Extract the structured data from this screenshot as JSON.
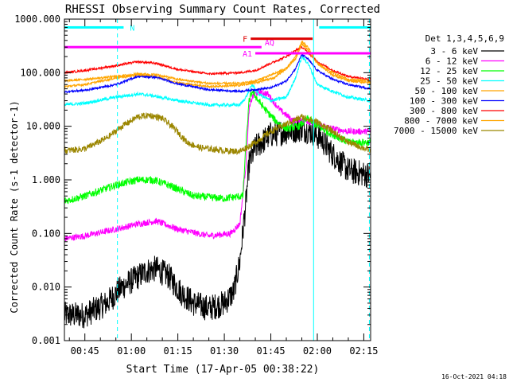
{
  "chart_data": {
    "type": "line",
    "title": "RHESSI Observing Summary Count Rates, Corrected",
    "xlabel": "Start Time (17-Apr-05 00:38:22)",
    "ylabel": "Corrected Count Rate (s-1 detector-1)",
    "ylog": true,
    "ylim": [
      0.001,
      1000
    ],
    "xlim_minutes": [
      38.4,
      137.2
    ],
    "y_ticks": [
      "1000.000",
      "100.000",
      "10.000",
      "1.000",
      "0.100",
      "0.010",
      "0.001"
    ],
    "x_ticks": [
      "00:45",
      "01:00",
      "01:15",
      "01:30",
      "01:45",
      "02:00",
      "02:15"
    ],
    "x_tick_minutes": [
      45,
      60,
      75,
      90,
      105,
      120,
      135
    ],
    "legend_title": "Det 1,3,4,5,6,9",
    "legend_position": "right",
    "footer": "16-Oct-2021 04:18",
    "series": [
      {
        "name": "3 - 6 keV",
        "color": "#000000",
        "noise": 0.25,
        "points": [
          [
            38.4,
            0.003
          ],
          [
            45,
            0.003
          ],
          [
            52,
            0.005
          ],
          [
            57,
            0.01
          ],
          [
            60,
            0.013
          ],
          [
            65,
            0.02
          ],
          [
            68,
            0.022
          ],
          [
            72,
            0.016
          ],
          [
            76,
            0.008
          ],
          [
            80,
            0.005
          ],
          [
            85,
            0.004
          ],
          [
            90,
            0.005
          ],
          [
            93,
            0.008
          ],
          [
            95,
            0.03
          ],
          [
            97,
            0.4
          ],
          [
            98,
            2
          ],
          [
            100,
            4
          ],
          [
            105,
            7
          ],
          [
            110,
            8
          ],
          [
            115,
            9
          ],
          [
            118,
            8
          ],
          [
            121,
            6
          ],
          [
            125,
            3
          ],
          [
            130,
            1.5
          ],
          [
            137.2,
            1.2
          ]
        ]
      },
      {
        "name": "6 - 12 keV",
        "color": "#ff00ff",
        "noise": 0.06,
        "points": [
          [
            38.4,
            0.08
          ],
          [
            45,
            0.09
          ],
          [
            55,
            0.12
          ],
          [
            62,
            0.15
          ],
          [
            68,
            0.17
          ],
          [
            75,
            0.12
          ],
          [
            85,
            0.09
          ],
          [
            92,
            0.1
          ],
          [
            95,
            0.15
          ],
          [
            97,
            2
          ],
          [
            98,
            20
          ],
          [
            99,
            35
          ],
          [
            101,
            45
          ],
          [
            104,
            40
          ],
          [
            108,
            20
          ],
          [
            112,
            13
          ],
          [
            116,
            13
          ],
          [
            120,
            11
          ],
          [
            125,
            9
          ],
          [
            130,
            8
          ],
          [
            137.2,
            8
          ]
        ]
      },
      {
        "name": "12 - 25 keV",
        "color": "#00ff00",
        "noise": 0.07,
        "points": [
          [
            38.4,
            0.4
          ],
          [
            45,
            0.5
          ],
          [
            55,
            0.8
          ],
          [
            62,
            1.0
          ],
          [
            67,
            1.0
          ],
          [
            72,
            0.8
          ],
          [
            80,
            0.5
          ],
          [
            90,
            0.45
          ],
          [
            96,
            0.5
          ],
          [
            97,
            5
          ],
          [
            98,
            30
          ],
          [
            99,
            45
          ],
          [
            101,
            30
          ],
          [
            104,
            18
          ],
          [
            107,
            12
          ],
          [
            110,
            9
          ],
          [
            114,
            10
          ],
          [
            117,
            14
          ],
          [
            120,
            10
          ],
          [
            125,
            7
          ],
          [
            130,
            5
          ],
          [
            137.2,
            5
          ]
        ]
      },
      {
        "name": "25 - 50 keV",
        "color": "#00ffff",
        "noise": 0.03,
        "points": [
          [
            38.4,
            25
          ],
          [
            45,
            27
          ],
          [
            55,
            35
          ],
          [
            62,
            40
          ],
          [
            66,
            38
          ],
          [
            75,
            30
          ],
          [
            85,
            25
          ],
          [
            95,
            25
          ],
          [
            97,
            35
          ],
          [
            99,
            60
          ],
          [
            101,
            40
          ],
          [
            105,
            30
          ],
          [
            110,
            35
          ],
          [
            113,
            80
          ],
          [
            115,
            200
          ],
          [
            117,
            150
          ],
          [
            120,
            60
          ],
          [
            125,
            45
          ],
          [
            130,
            35
          ],
          [
            137.2,
            30
          ]
        ]
      },
      {
        "name": "50 - 100 keV",
        "color": "#ffa500",
        "noise": 0.02,
        "points": [
          [
            38.4,
            55
          ],
          [
            45,
            60
          ],
          [
            55,
            80
          ],
          [
            62,
            90
          ],
          [
            68,
            85
          ],
          [
            75,
            65
          ],
          [
            85,
            55
          ],
          [
            95,
            58
          ],
          [
            100,
            65
          ],
          [
            106,
            80
          ],
          [
            110,
            120
          ],
          [
            113,
            200
          ],
          [
            115,
            380
          ],
          [
            117,
            300
          ],
          [
            120,
            150
          ],
          [
            125,
            90
          ],
          [
            130,
            70
          ],
          [
            137.2,
            65
          ]
        ]
      },
      {
        "name": "100 - 300 keV",
        "color": "#0000ff",
        "noise": 0.02,
        "points": [
          [
            38.4,
            44
          ],
          [
            45,
            47
          ],
          [
            55,
            60
          ],
          [
            62,
            85
          ],
          [
            68,
            82
          ],
          [
            75,
            62
          ],
          [
            85,
            48
          ],
          [
            95,
            45
          ],
          [
            105,
            52
          ],
          [
            110,
            70
          ],
          [
            113,
            120
          ],
          [
            115,
            220
          ],
          [
            117,
            180
          ],
          [
            120,
            110
          ],
          [
            125,
            75
          ],
          [
            130,
            60
          ],
          [
            137.2,
            50
          ]
        ]
      },
      {
        "name": "300 - 800 keV",
        "color": "#ff0000",
        "noise": 0.02,
        "points": [
          [
            38.4,
            100
          ],
          [
            45,
            110
          ],
          [
            55,
            135
          ],
          [
            62,
            160
          ],
          [
            68,
            150
          ],
          [
            75,
            115
          ],
          [
            85,
            95
          ],
          [
            95,
            100
          ],
          [
            100,
            110
          ],
          [
            105,
            150
          ],
          [
            110,
            200
          ],
          [
            113,
            260
          ],
          [
            115,
            300
          ],
          [
            117,
            240
          ],
          [
            120,
            160
          ],
          [
            125,
            110
          ],
          [
            130,
            85
          ],
          [
            137.2,
            75
          ]
        ]
      },
      {
        "name": "800 - 7000 keV",
        "color": "#ffa500",
        "noise": 0.02,
        "points": [
          [
            38.4,
            70
          ],
          [
            45,
            75
          ],
          [
            55,
            85
          ],
          [
            62,
            95
          ],
          [
            68,
            92
          ],
          [
            75,
            75
          ],
          [
            85,
            63
          ],
          [
            95,
            63
          ],
          [
            100,
            70
          ],
          [
            105,
            90
          ],
          [
            110,
            120
          ],
          [
            113,
            180
          ],
          [
            115,
            350
          ],
          [
            117,
            260
          ],
          [
            120,
            150
          ],
          [
            125,
            100
          ],
          [
            130,
            75
          ],
          [
            137.2,
            70
          ]
        ]
      },
      {
        "name": "7000 - 15000 keV",
        "color": "#9b8600",
        "noise": 0.06,
        "points": [
          [
            38.4,
            3.5
          ],
          [
            45,
            3.8
          ],
          [
            52,
            6
          ],
          [
            57,
            10
          ],
          [
            62,
            15
          ],
          [
            66,
            16
          ],
          [
            70,
            14
          ],
          [
            74,
            9
          ],
          [
            78,
            5
          ],
          [
            82,
            4
          ],
          [
            90,
            3.5
          ],
          [
            95,
            3.4
          ],
          [
            100,
            5
          ],
          [
            105,
            8
          ],
          [
            110,
            11
          ],
          [
            115,
            15
          ],
          [
            120,
            12
          ],
          [
            125,
            8
          ],
          [
            130,
            5
          ],
          [
            137.2,
            3.5
          ]
        ]
      }
    ],
    "annotations": [
      {
        "label": "N",
        "color": "#00ffff",
        "value": 700,
        "intervals": [
          [
            38.4,
            57.5
          ],
          [
            120.6,
            137.2
          ]
        ]
      },
      {
        "label": "F",
        "color": "#dd0000",
        "value": 430,
        "intervals": [
          [
            98.5,
            118.5
          ]
        ]
      },
      {
        "label": "AQ",
        "color": "#ff00ff",
        "value": 300,
        "intervals": [
          [
            38.4,
            102
          ]
        ]
      },
      {
        "label": "A1",
        "color": "#ff00ff",
        "value": 230,
        "intervals": [
          [
            100,
            137.2
          ]
        ]
      }
    ],
    "markers": [
      {
        "color": "#00ffff",
        "style": "dashed",
        "x": 55.5
      },
      {
        "color": "#00ffff",
        "style": "solid",
        "x": 118.8
      },
      {
        "color": "#00ffff",
        "style": "dashed",
        "x": 136.8
      }
    ]
  }
}
